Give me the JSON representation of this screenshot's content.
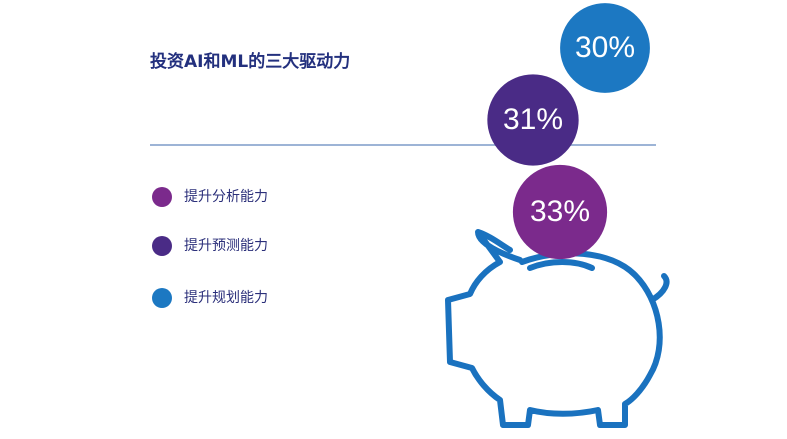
{
  "chart_data": {
    "type": "bubble",
    "title": "投资AI和ML的三大驱动力",
    "categories": [
      "提升分析能力",
      "提升预测能力",
      "提升规划能力"
    ],
    "values": [
      33,
      31,
      30
    ],
    "value_labels": [
      "33%",
      "31%",
      "30%"
    ],
    "colors": [
      "#7b2a8c",
      "#4a2b86",
      "#1c78c2"
    ]
  }
}
